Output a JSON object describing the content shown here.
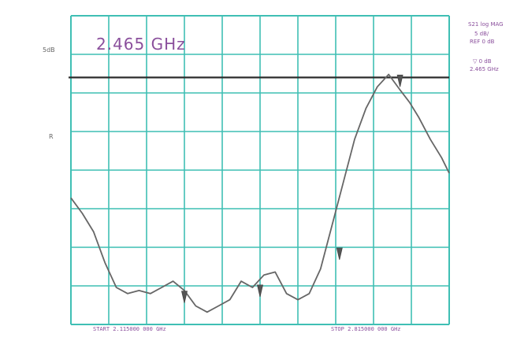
{
  "chart_data": {
    "type": "line",
    "title": "2.465 GHz",
    "left_labels": [
      "5dB",
      "R"
    ],
    "right_labels": [
      "S21 log MAG",
      "5 dB/",
      "REF 0 dB",
      "▽ 0 dB",
      "2.465 GHz"
    ],
    "bottom_left_label": "START 2.115000 000 GHz",
    "bottom_right_label": "STOP 2.815000 000 GHz",
    "grid": true,
    "reference_line_y": 0,
    "colors": {
      "grid": "#3fbfb4",
      "trace": "#666666",
      "reference": "#2d2d2d",
      "text": "#8a4f9c"
    },
    "xlim": [
      0,
      10
    ],
    "ylim": [
      -40,
      10
    ],
    "series": [
      {
        "x": [
          0,
          0.3,
          0.6,
          0.9,
          1.2,
          1.5,
          1.8,
          2.1,
          2.4,
          2.7,
          3.0,
          3.3,
          3.6,
          3.9,
          4.2,
          4.5,
          4.8,
          5.1,
          5.4,
          5.7,
          6.0,
          6.3,
          6.6,
          6.9,
          7.2,
          7.5,
          7.8,
          8.1,
          8.4,
          8.7,
          8.95,
          9.2,
          9.5,
          9.8,
          10.0
        ],
        "values": [
          -19.5,
          -22,
          -25,
          -30,
          -34,
          -35,
          -34.5,
          -35,
          -34,
          -33,
          -34.5,
          -37,
          -38,
          -37,
          -36,
          -33,
          -34,
          -32,
          -31.5,
          -35,
          -36,
          -35,
          -31,
          -24,
          -17,
          -10,
          -5,
          -1.5,
          0.5,
          -2,
          -4,
          -6.5,
          -10,
          -13,
          -15.5
        ]
      }
    ],
    "markers": [
      {
        "x": 3.0,
        "y": -35.5
      },
      {
        "x": 5.0,
        "y": -34.5
      },
      {
        "x": 7.1,
        "y": -28.5
      },
      {
        "x": 8.7,
        "y": -0.5
      }
    ]
  }
}
